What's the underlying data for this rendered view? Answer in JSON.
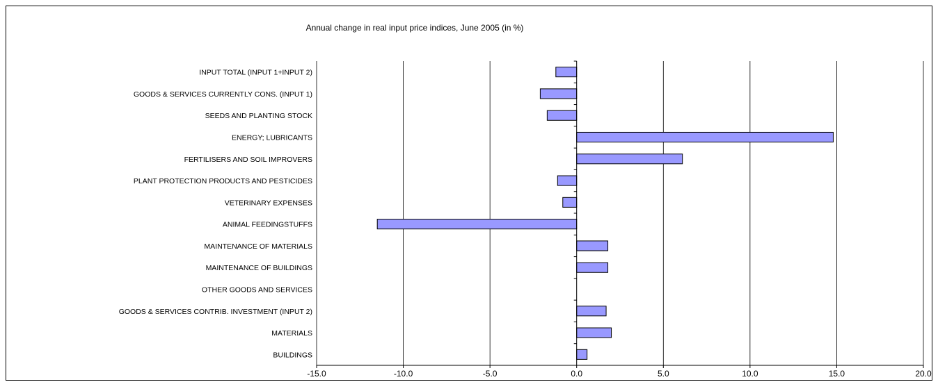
{
  "chart_data": {
    "type": "bar",
    "orientation": "horizontal",
    "title": "Annual change in real input price indices, June 2005 (in %)",
    "xlabel": "",
    "ylabel": "",
    "categories": [
      "INPUT TOTAL  (INPUT 1+INPUT 2)",
      "GOODS & SERVICES CURRENTLY CONS. (INPUT 1)",
      "SEEDS AND PLANTING STOCK",
      "ENERGY; LUBRICANTS",
      "FERTILISERS AND SOIL IMPROVERS",
      "PLANT PROTECTION PRODUCTS AND PESTICIDES",
      "VETERINARY EXPENSES",
      "ANIMAL FEEDINGSTUFFS",
      "MAINTENANCE OF MATERIALS",
      "MAINTENANCE OF BUILDINGS",
      "OTHER GOODS AND SERVICES",
      "GOODS & SERVICES CONTRIB. INVESTMENT (INPUT 2)",
      "MATERIALS",
      "BUILDINGS"
    ],
    "values": [
      -1.2,
      -2.1,
      -1.7,
      14.8,
      6.1,
      -1.1,
      -0.8,
      -11.5,
      1.8,
      1.8,
      null,
      1.7,
      2.0,
      0.6
    ],
    "xlim": [
      -15,
      20
    ],
    "xticks": [
      -15,
      -10,
      -5,
      0,
      5,
      10,
      15,
      20
    ],
    "xtick_labels": [
      "-15.0",
      "-10.0",
      "-5.0",
      "0.0",
      "5.0",
      "10.0",
      "15.0",
      "20.0"
    ],
    "grid": "vertical major gridlines",
    "legend": "none",
    "colors": {
      "bar_fill": "#9999FF",
      "bar_stroke": "#000000",
      "grid": "#000000"
    }
  }
}
